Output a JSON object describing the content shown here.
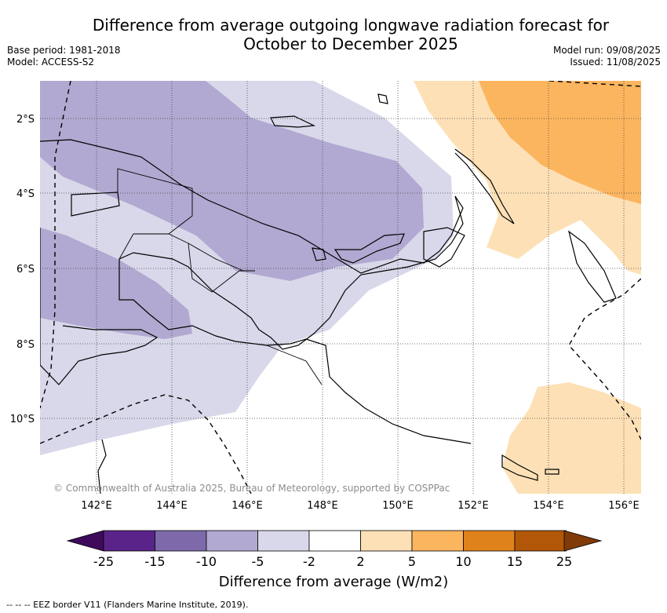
{
  "title_line1": "Difference from average outgoing longwave radiation forecast for",
  "title_line2": "October to December 2025",
  "meta_left": {
    "base_period": "Base period: 1981-2018",
    "model": "Model: ACCESS-S2"
  },
  "meta_right": {
    "model_run": "Model run: 09/08/2025",
    "issued": "Issued: 11/08/2025"
  },
  "copyright": "© Commonwealth of Australia 2025, Bureau of Meteorology, supported by COSPPac",
  "lon_labels": [
    "142°E",
    "144°E",
    "146°E",
    "148°E",
    "150°E",
    "152°E",
    "154°E",
    "156°E"
  ],
  "lat_labels": [
    "2°S",
    "4°S",
    "6°S",
    "8°S",
    "10°S"
  ],
  "colorbar": {
    "label": "Difference from average (W/m2)",
    "ticks": [
      "-25",
      "-15",
      "-10",
      "-5",
      "-2",
      "2",
      "5",
      "10",
      "15",
      "25"
    ],
    "colors": [
      "#3f0a5a",
      "#5a2389",
      "#7e6aab",
      "#b1a9d1",
      "#d8d8ea",
      "#ffffff",
      "#fde0b6",
      "#fcb55f",
      "#e0821c",
      "#b25708",
      "#7f3a08"
    ]
  },
  "footnote": "--  --  -- EEZ border V11 (Flanders Marine Institute, 2019)."
}
